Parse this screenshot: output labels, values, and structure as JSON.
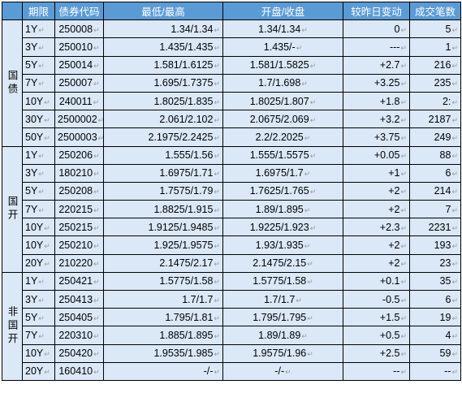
{
  "headers": [
    "期限",
    "债券代码",
    "最低/最高",
    "开盘/收盘",
    "较昨日变动",
    "成交笔数"
  ],
  "groups": [
    {
      "label": "国债",
      "rows": [
        [
          "1Y",
          "250008",
          "1.34/1.34",
          "1.34/1.34",
          "0",
          "5"
        ],
        [
          "3Y",
          "250010",
          "1.435/1.435",
          "1.435/-",
          "---",
          "1"
        ],
        [
          "5Y",
          "250014",
          "1.581/1.6125",
          "1.581/1.5825",
          "+2.7",
          "216"
        ],
        [
          "7Y",
          "250007",
          "1.695/1.7375",
          "1.7/1.698",
          "+3.25",
          "235"
        ],
        [
          "10Y",
          "240011",
          "1.8025/1.835",
          "1.8025/1.807",
          "+1.8",
          "2:"
        ],
        [
          "30Y",
          "2500002",
          "2.061/2.102",
          "2.0675/2.069",
          "+3.2",
          "2187"
        ],
        [
          "50Y",
          "2500003",
          "2.1975/2.2425",
          "2.2/2.2025",
          "+3.75",
          "249"
        ]
      ]
    },
    {
      "label": "国开",
      "rows": [
        [
          "1Y",
          "250206",
          "1.555/1.56",
          "1.555/1.5575",
          "+0.05",
          "88"
        ],
        [
          "3Y",
          "180210",
          "1.6975/1.71",
          "1.6975/1.7",
          "+1",
          "6"
        ],
        [
          "5Y",
          "250208",
          "1.7575/1.79",
          "1.7625/1.765",
          "+2",
          "214"
        ],
        [
          "7Y",
          "220215",
          "1.8825/1.915",
          "1.89/1.895",
          "+2",
          "7"
        ],
        [
          "10Y",
          "250215",
          "1.9125/1.9485",
          "1.9225/1.923",
          "+2.3",
          "2231"
        ],
        [
          "10Y",
          "250210",
          "1.925/1.9575",
          "1.93/1.935",
          "+2",
          "193"
        ],
        [
          "20Y",
          "210220",
          "2.1475/2.17",
          "2.1475/2.15",
          "+2",
          "23"
        ]
      ]
    },
    {
      "label": "非国开",
      "rows": [
        [
          "1Y",
          "250421",
          "1.5775/1.58",
          "1.5775/1.58",
          "+0.1",
          "35"
        ],
        [
          "3Y",
          "250413",
          "1.7/1.7",
          "1.7/1.7",
          "-0.5",
          "6"
        ],
        [
          "5Y",
          "250405",
          "1.795/1.81",
          "1.795/1.795",
          "+1.5",
          "19"
        ],
        [
          "7Y",
          "220310",
          "1.885/1.895",
          "1.89/1.89",
          "+0.5",
          "4"
        ],
        [
          "10Y",
          "250420",
          "1.9535/1.985",
          "1.9575/1.96",
          "+2.5",
          "59"
        ],
        [
          "20Y",
          "160410",
          "-/-",
          "-/-",
          "--",
          "--"
        ]
      ]
    }
  ]
}
